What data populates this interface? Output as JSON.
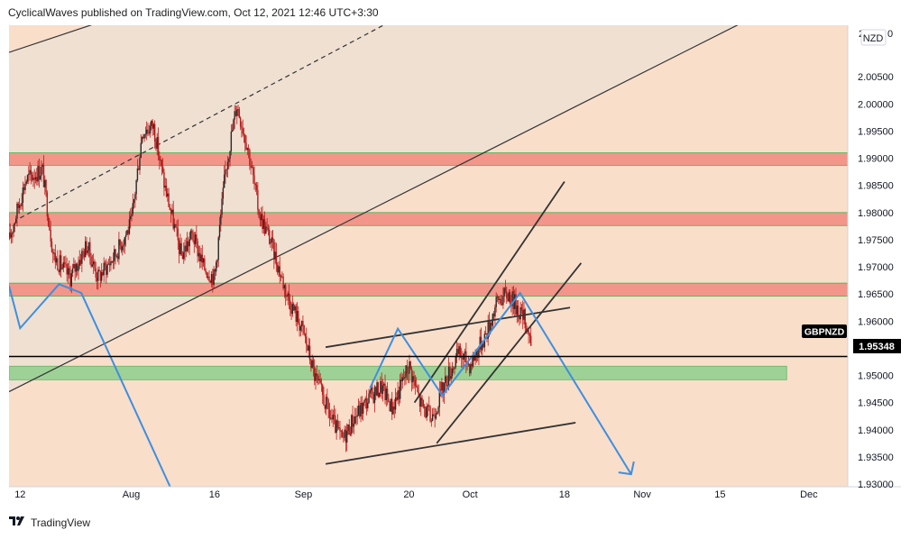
{
  "header": {
    "text": "CyclicalWaves published on TradingView.com, Oct 12, 2021 12:46 UTC+3:30"
  },
  "footer": {
    "brand": "TradingView",
    "logo_icon": "tradingview-logo-icon"
  },
  "colors": {
    "background": "#f9deca",
    "channel_fill": "#efe0d2",
    "resistance_zone": "#f2968a",
    "support_zone": "#8fcf8c",
    "candles": "#b71c1c",
    "trendlines": "#333333",
    "projection": "#3d8fe0",
    "price_line": "#000000"
  },
  "chart_data": {
    "type": "candlestick",
    "symbol": "NZD",
    "series_label": "GBPNZD",
    "last_price": "1.95348",
    "y_ticks": [
      "2.00500",
      "2.00000",
      "1.99500",
      "1.99000",
      "1.98500",
      "1.98000",
      "1.97500",
      "1.97000",
      "1.96500",
      "1.96000",
      "1.95500",
      "1.95000",
      "1.94500",
      "1.94000",
      "1.93500",
      "1.93000"
    ],
    "top_tick_partial": "2",
    "top_tick_suffix": "0",
    "ylim": [
      1.9295,
      2.0145
    ],
    "x_ticks": [
      {
        "label": "12",
        "date": "2021-07-12"
      },
      {
        "label": "Aug",
        "date": "2021-08-01"
      },
      {
        "label": "16",
        "date": "2021-08-16"
      },
      {
        "label": "Sep",
        "date": "2021-09-01"
      },
      {
        "label": "20",
        "date": "2021-09-20"
      },
      {
        "label": "Oct",
        "date": "2021-10-01"
      },
      {
        "label": "18",
        "date": "2021-10-18"
      },
      {
        "label": "Nov",
        "date": "2021-11-01"
      },
      {
        "label": "15",
        "date": "2021-11-15"
      },
      {
        "label": "Dec",
        "date": "2021-12-01"
      }
    ],
    "xlim": [
      "2021-07-10",
      "2021-12-08"
    ],
    "price_path": [
      [
        "2021-07-10",
        1.975
      ],
      [
        "2021-07-13",
        1.986
      ],
      [
        "2021-07-16",
        1.988
      ],
      [
        "2021-07-18",
        1.972
      ],
      [
        "2021-07-21",
        1.968
      ],
      [
        "2021-07-24",
        1.974
      ],
      [
        "2021-07-26",
        1.968
      ],
      [
        "2021-07-29",
        1.972
      ],
      [
        "2021-08-01",
        1.978
      ],
      [
        "2021-08-03",
        1.995
      ],
      [
        "2021-08-05",
        1.996
      ],
      [
        "2021-08-07",
        1.985
      ],
      [
        "2021-08-10",
        1.972
      ],
      [
        "2021-08-12",
        1.976
      ],
      [
        "2021-08-14",
        1.97
      ],
      [
        "2021-08-16",
        1.968
      ],
      [
        "2021-08-18",
        1.988
      ],
      [
        "2021-08-20",
        2.0
      ],
      [
        "2021-08-22",
        1.992
      ],
      [
        "2021-08-24",
        1.98
      ],
      [
        "2021-08-26",
        1.975
      ],
      [
        "2021-08-29",
        1.965
      ],
      [
        "2021-09-01",
        1.958
      ],
      [
        "2021-09-03",
        1.95
      ],
      [
        "2021-09-06",
        1.942
      ],
      [
        "2021-09-08",
        1.938
      ],
      [
        "2021-09-10",
        1.942
      ],
      [
        "2021-09-13",
        1.946
      ],
      [
        "2021-09-15",
        1.948
      ],
      [
        "2021-09-17",
        1.944
      ],
      [
        "2021-09-20",
        1.952
      ],
      [
        "2021-09-22",
        1.945
      ],
      [
        "2021-09-24",
        1.942
      ],
      [
        "2021-09-27",
        1.95
      ],
      [
        "2021-09-29",
        1.954
      ],
      [
        "2021-10-01",
        1.952
      ],
      [
        "2021-10-04",
        1.958
      ],
      [
        "2021-10-06",
        1.964
      ],
      [
        "2021-10-08",
        1.965
      ],
      [
        "2021-10-11",
        1.96
      ],
      [
        "2021-10-12",
        1.956
      ]
    ],
    "channel_band": {
      "upper": [
        [
          "2021-07-10",
          2.0095
        ],
        [
          "2021-08-01",
          2.017
        ]
      ],
      "lower": [
        [
          "2021-07-10",
          1.947
        ],
        [
          "2021-11-21",
          2.016
        ]
      ],
      "midline_dashed": [
        [
          "2021-07-12",
          1.979
        ],
        [
          "2021-09-20",
          2.017
        ]
      ]
    },
    "zones": [
      {
        "kind": "resistance",
        "from": 1.991,
        "to": 1.9887
      },
      {
        "kind": "resistance",
        "from": 1.98,
        "to": 1.9776
      },
      {
        "kind": "resistance",
        "from": 1.967,
        "to": 1.9646
      },
      {
        "kind": "support",
        "from": 1.9517,
        "to": 1.9492,
        "end": "2021-11-27"
      }
    ],
    "trendlines": [
      [
        [
          "2021-09-05",
          1.9337
        ],
        [
          "2021-10-20",
          1.9413
        ]
      ],
      [
        [
          "2021-09-05",
          1.9552
        ],
        [
          "2021-10-19",
          1.9625
        ]
      ],
      [
        [
          "2021-09-25",
          1.9375
        ],
        [
          "2021-10-21",
          1.9707
        ]
      ],
      [
        [
          "2021-09-21",
          1.945
        ],
        [
          "2021-10-18",
          1.9857
        ]
      ]
    ],
    "projection_path": [
      [
        "2021-07-10",
        1.9665
      ],
      [
        "2021-07-12",
        1.9587
      ],
      [
        "2021-07-19",
        1.9668
      ],
      [
        "2021-07-23",
        1.9652
      ],
      [
        "2021-08-08",
        1.9295
      ],
      [
        "2021-08-08",
        1.9295
      ]
    ],
    "projection_path_2": [
      [
        "2021-09-13",
        1.9477
      ],
      [
        "2021-09-18",
        1.9586
      ],
      [
        "2021-09-26",
        1.9463
      ],
      [
        "2021-10-10",
        1.9652
      ],
      [
        "2021-10-30",
        1.9318
      ]
    ]
  }
}
